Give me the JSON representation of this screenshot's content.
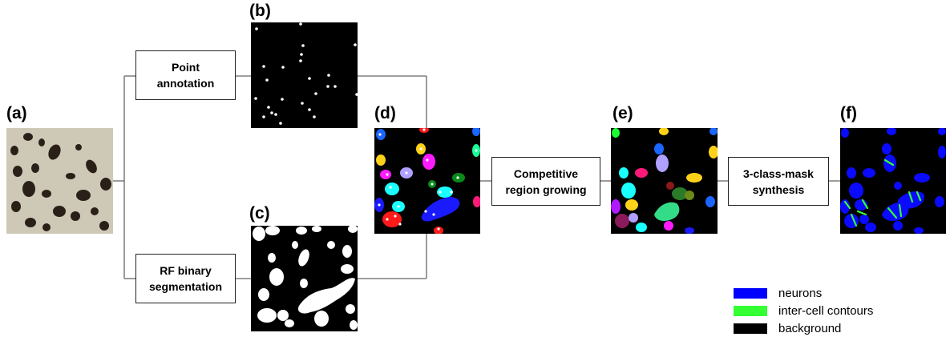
{
  "panels": {
    "a": "(a)",
    "b": "(b)",
    "c": "(c)",
    "d": "(d)",
    "e": "(e)",
    "f": "(f)"
  },
  "steps": {
    "point_annotation": [
      "Point",
      "annotation"
    ],
    "rf_segmentation": [
      "RF binary",
      "segmentation"
    ],
    "region_growing": [
      "Competitive",
      "region growing"
    ],
    "mask_synthesis": [
      "3-class-mask",
      "synthesis"
    ]
  },
  "legend": [
    {
      "label": "neurons",
      "color": "#0000ff"
    },
    {
      "label": "inter-cell contours",
      "color": "#33ff33"
    },
    {
      "label": "background",
      "color": "#000000"
    }
  ],
  "colors": {
    "micro_bg": "#c9c2b0",
    "cell_dark": "#2a2018",
    "mask_bg": "#000000",
    "neuron": "#0a0aff",
    "contour": "#33ff33"
  }
}
